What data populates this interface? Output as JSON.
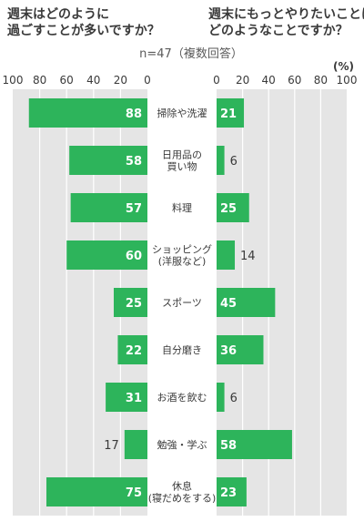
{
  "header": {
    "left_question_lines": [
      "週末はどのように",
      "過ごすことが多いですか？"
    ],
    "right_question_lines": [
      "週末にもっとやりたいことは",
      "どのようなことですか？"
    ],
    "respondents": "n=47（複数回答）",
    "unit": "(%)"
  },
  "chart_data": {
    "type": "bar",
    "orientation": "horizontal-butterfly",
    "colors": {
      "bar": "#2db45b",
      "panel": "#e5e5e5",
      "grid": "#ffffff"
    },
    "categories": [
      [
        "掃除や洗濯"
      ],
      [
        "日用品の",
        "買い物"
      ],
      [
        "料理"
      ],
      [
        "ショッピング",
        "(洋服など)"
      ],
      [
        "スポーツ"
      ],
      [
        "自分磨き"
      ],
      [
        "お酒を飲む"
      ],
      [
        "勉強・学ぶ"
      ],
      [
        "休息",
        "(寝だめをする)"
      ]
    ],
    "left": {
      "question": "週末はどのように過ごすことが多いですか？",
      "values": [
        88,
        58,
        57,
        60,
        25,
        22,
        31,
        17,
        75
      ],
      "ticks": [
        100,
        80,
        60,
        40,
        20,
        0
      ],
      "xlim": [
        0,
        100
      ]
    },
    "right": {
      "question": "週末にもっとやりたいことはどのようなことですか？",
      "values": [
        21,
        6,
        25,
        14,
        45,
        36,
        6,
        58,
        23
      ],
      "ticks": [
        0,
        20,
        40,
        60,
        80,
        100
      ],
      "xlim": [
        0,
        100
      ]
    },
    "grid": true
  }
}
